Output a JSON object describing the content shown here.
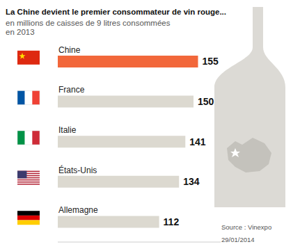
{
  "chart_data": {
    "type": "bar",
    "orientation": "horizontal",
    "title": "La Chine devient le premier consommateur de vin rouge...",
    "subtitle": "en millions de caisses de 9 litres consommées en 2013",
    "categories": [
      "Chine",
      "France",
      "Italie",
      "États-Unis",
      "Allemagne"
    ],
    "values": [
      155,
      150,
      141,
      134,
      112
    ],
    "colors": [
      "#f2673a",
      "#dcd9d0",
      "#dcd9d0",
      "#dcd9d0",
      "#dcd9d0"
    ],
    "xlim": [
      0,
      180
    ],
    "data_labels": true,
    "tick_labels": "y",
    "grid": false,
    "source": "Source : Vinexpo",
    "date": "29/01/2014"
  }
}
